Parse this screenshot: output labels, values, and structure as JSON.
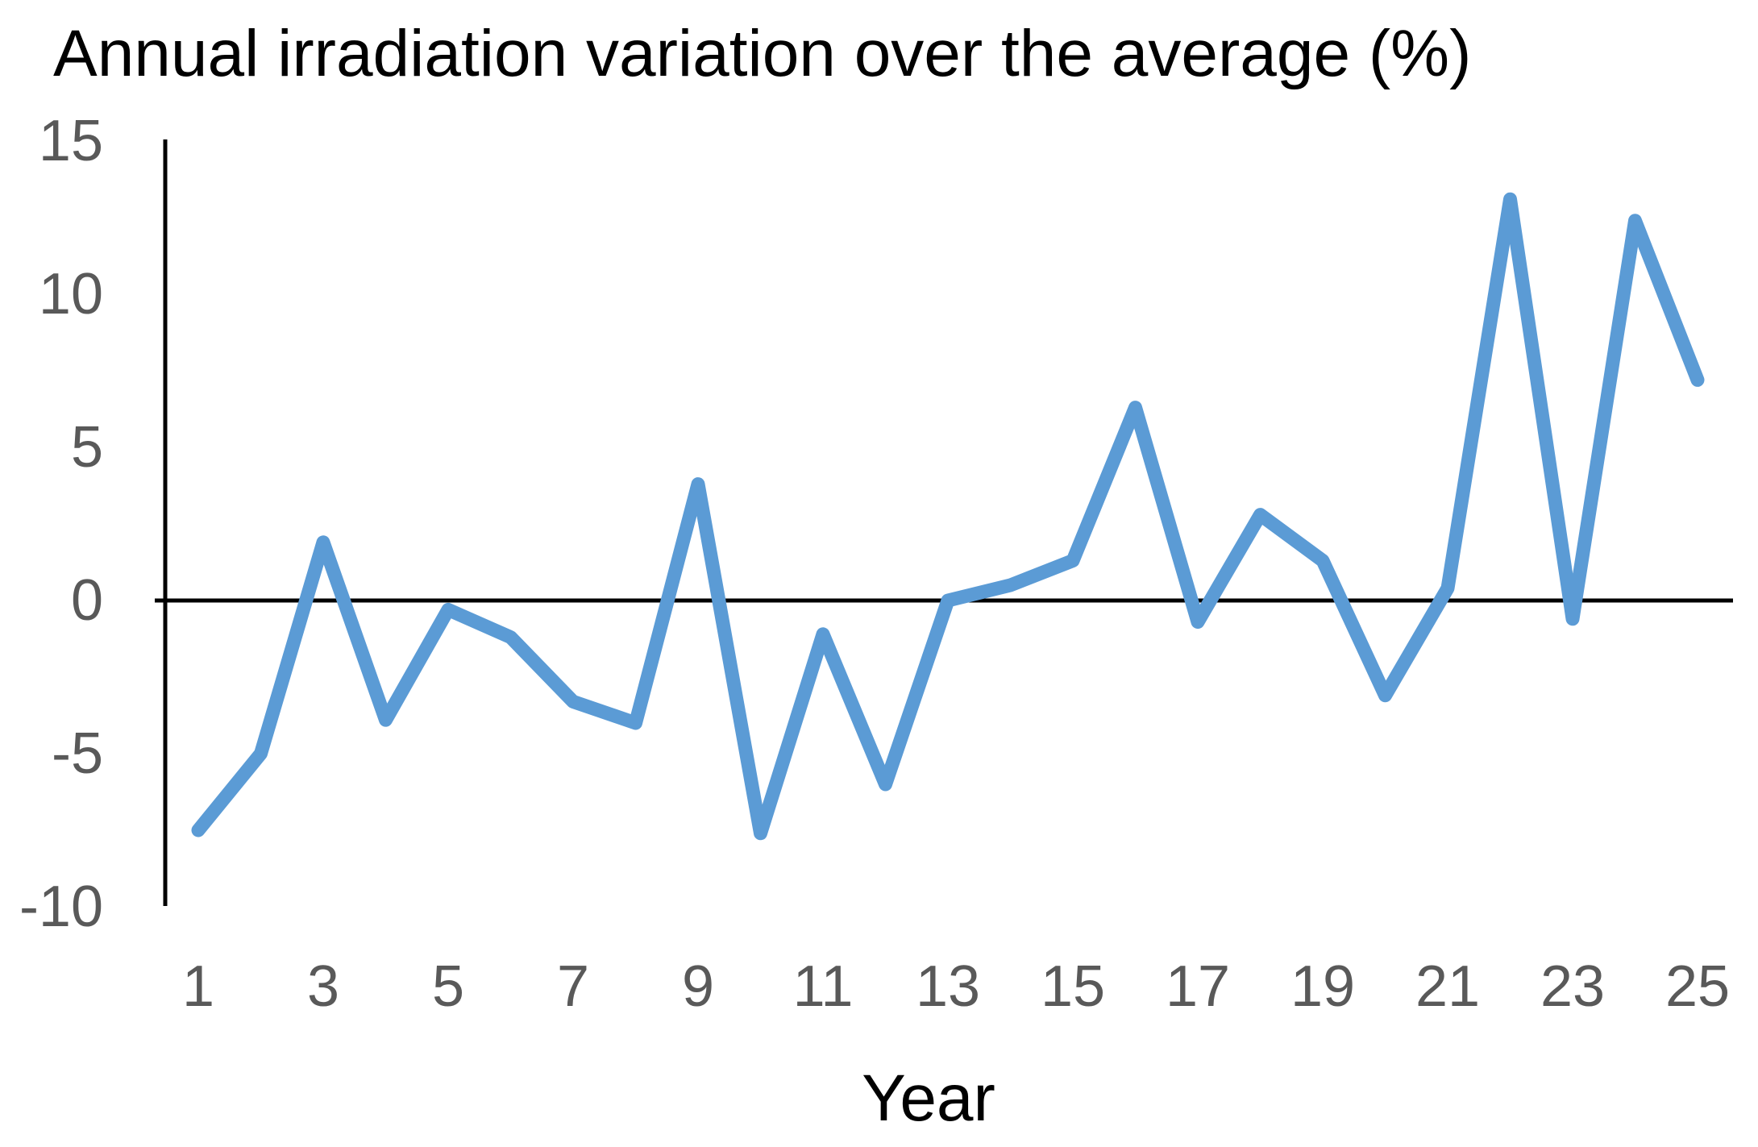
{
  "chart_data": {
    "type": "line",
    "title": "Annual irradiation variation over the average (%)",
    "xlabel": "Year",
    "ylabel": "",
    "x": [
      1,
      2,
      3,
      4,
      5,
      6,
      7,
      8,
      9,
      10,
      11,
      12,
      13,
      14,
      15,
      16,
      17,
      18,
      19,
      20,
      21,
      22,
      23,
      24,
      25
    ],
    "values": [
      -7.5,
      -5.0,
      1.9,
      -3.9,
      -0.3,
      -1.2,
      -3.3,
      -4.0,
      3.8,
      -7.6,
      -1.1,
      -6.0,
      0.0,
      0.5,
      1.3,
      6.3,
      -0.7,
      2.8,
      1.3,
      -3.1,
      0.4,
      13.1,
      -0.6,
      12.4,
      7.2
    ],
    "xticks": [
      1,
      3,
      5,
      7,
      9,
      11,
      13,
      15,
      17,
      19,
      21,
      23,
      25
    ],
    "yticks": [
      15,
      10,
      5,
      0,
      -5,
      -10
    ],
    "xlim": [
      1,
      25
    ],
    "ylim": [
      -10,
      15
    ],
    "grid": false,
    "legend": false,
    "line_color": "#5B9BD5",
    "axis_color": "#000000",
    "tick_label_color": "#595959",
    "title_color": "#000000"
  }
}
